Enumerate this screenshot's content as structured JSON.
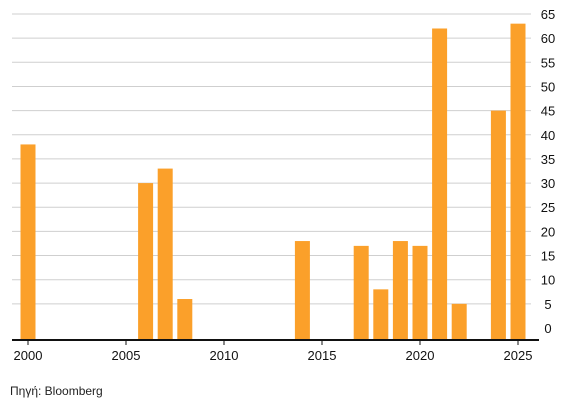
{
  "chart_data": {
    "type": "bar",
    "bar_color": "#FBA02A",
    "categories": [
      2000,
      2001,
      2002,
      2003,
      2004,
      2005,
      2006,
      2007,
      2008,
      2009,
      2010,
      2011,
      2012,
      2013,
      2014,
      2015,
      2016,
      2017,
      2018,
      2019,
      2020,
      2021,
      2022,
      2023,
      2024,
      2025
    ],
    "values": [
      38,
      0,
      0,
      0,
      0,
      0,
      30,
      33,
      6,
      0,
      0,
      0,
      0,
      0,
      18,
      0,
      0,
      17,
      8,
      18,
      17,
      62,
      5,
      0,
      45,
      63
    ],
    "x_tick_labels": [
      "2000",
      "2005",
      "2010",
      "2015",
      "2020",
      "2025"
    ],
    "y_tick_labels": [
      "0",
      "5",
      "10",
      "15",
      "20",
      "25",
      "30",
      "35",
      "40",
      "45",
      "50",
      "55",
      "60",
      "65"
    ],
    "ylim": [
      0,
      65
    ],
    "grid": true,
    "y_axis_side": "right",
    "source": "Πηγή: Bloomberg"
  }
}
